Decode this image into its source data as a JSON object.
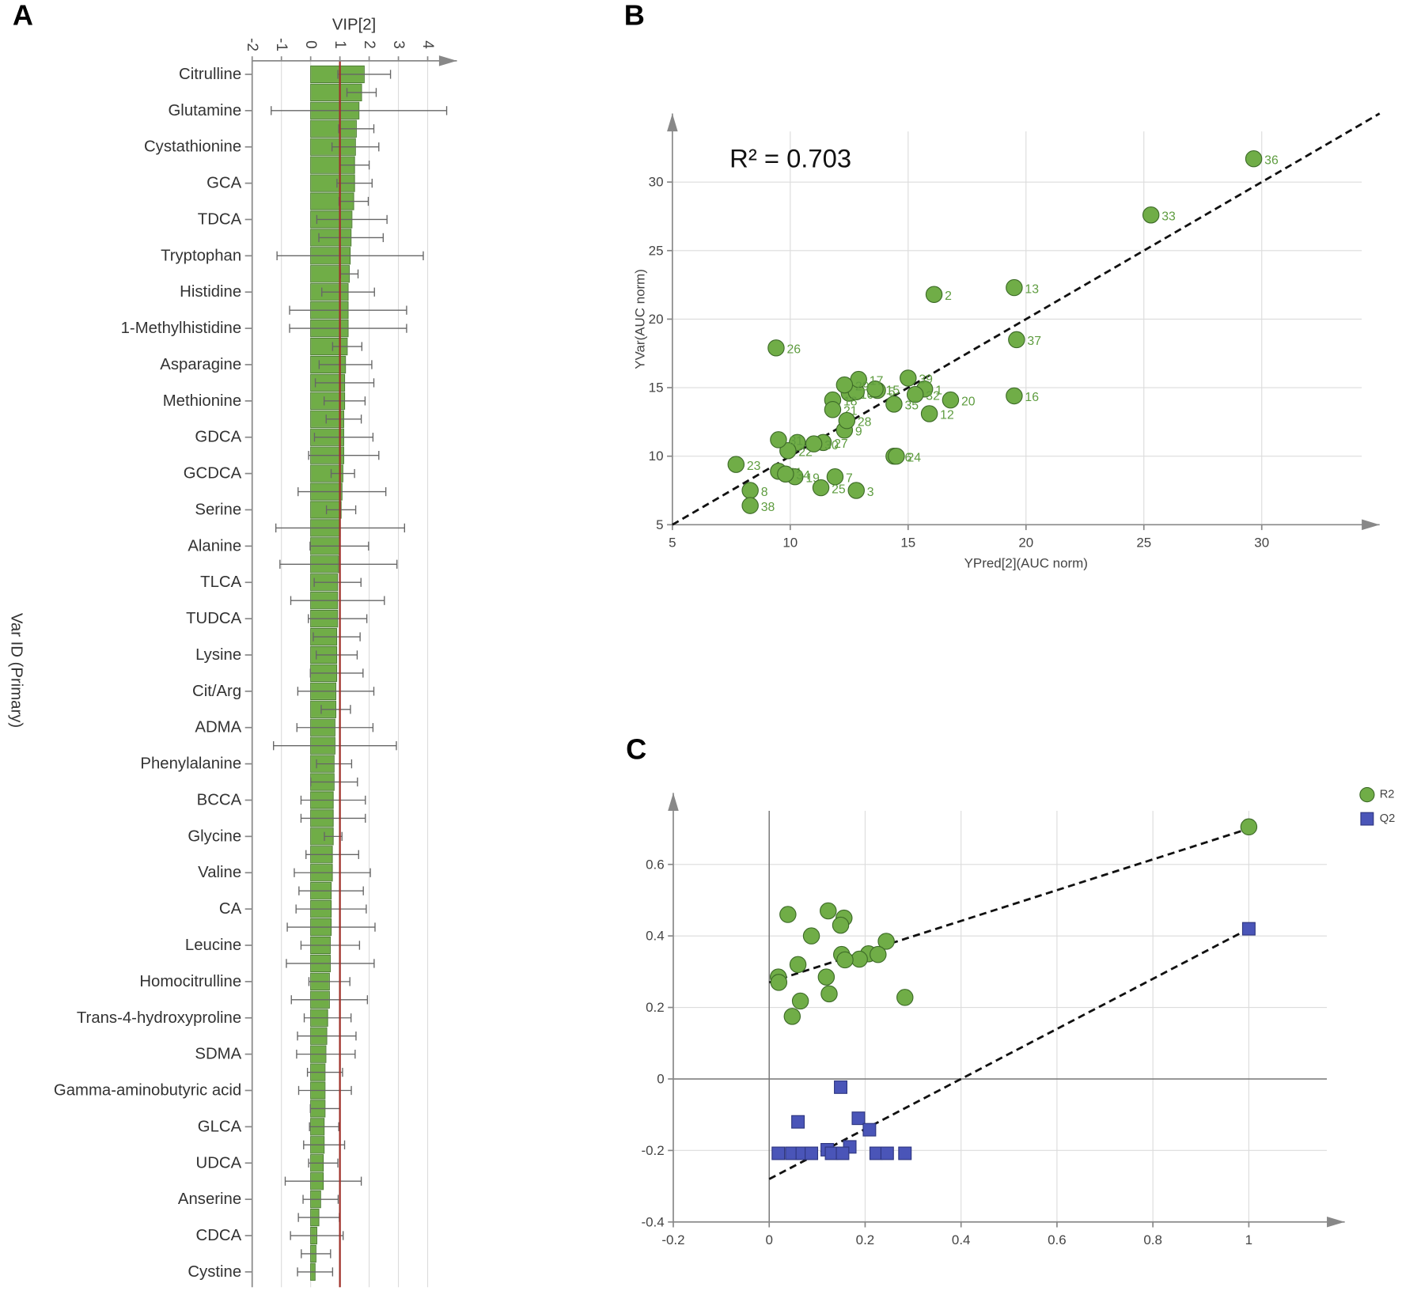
{
  "chart_data": [
    {
      "panel": "A",
      "type": "hbar",
      "xlabel": "VIP[2]",
      "ylabel": "Var ID (Primary)",
      "categories": [
        "Citrulline",
        null,
        "Glutamine",
        null,
        "Cystathionine",
        null,
        "GCA",
        null,
        "TDCA",
        null,
        "Tryptophan",
        null,
        "Histidine",
        null,
        "1-Methylhistidine",
        null,
        "Asparagine",
        null,
        "Methionine",
        null,
        "GDCA",
        null,
        "GCDCA",
        null,
        "Serine",
        null,
        "Alanine",
        null,
        "TLCA",
        null,
        "TUDCA",
        null,
        "Lysine",
        null,
        "Cit/Arg",
        null,
        "ADMA",
        null,
        "Phenylalanine",
        null,
        "BCCA",
        null,
        "Glycine",
        null,
        "Valine",
        null,
        "CA",
        null,
        "Leucine",
        null,
        "Homocitrulline",
        null,
        "Trans-4-hydroxyproline",
        null,
        "SDMA",
        null,
        "Gamma-aminobutyric acid",
        null,
        "GLCA",
        null,
        "UDCA",
        null,
        "Anserine",
        null,
        "CDCA",
        null,
        "Cystine"
      ],
      "values": [
        1.83,
        1.74,
        1.65,
        1.56,
        1.53,
        1.5,
        1.5,
        1.47,
        1.41,
        1.38,
        1.35,
        1.32,
        1.28,
        1.28,
        1.28,
        1.25,
        1.19,
        1.16,
        1.16,
        1.13,
        1.13,
        1.13,
        1.1,
        1.07,
        1.04,
        1.01,
        0.98,
        0.95,
        0.92,
        0.92,
        0.92,
        0.89,
        0.89,
        0.89,
        0.86,
        0.86,
        0.83,
        0.83,
        0.8,
        0.8,
        0.77,
        0.77,
        0.77,
        0.74,
        0.74,
        0.7,
        0.7,
        0.7,
        0.67,
        0.67,
        0.64,
        0.64,
        0.58,
        0.55,
        0.52,
        0.49,
        0.49,
        0.49,
        0.46,
        0.46,
        0.43,
        0.43,
        0.34,
        0.28,
        0.21,
        0.18,
        0.15
      ],
      "errors": [
        0.9,
        0.5,
        3.0,
        0.6,
        0.8,
        0.5,
        0.6,
        0.5,
        1.2,
        1.1,
        2.5,
        0.3,
        0.9,
        2.0,
        2.0,
        0.5,
        0.9,
        1.0,
        0.7,
        0.6,
        1.0,
        1.2,
        0.4,
        1.5,
        0.5,
        2.2,
        1.0,
        2.0,
        0.8,
        1.6,
        1.0,
        0.8,
        0.7,
        0.9,
        1.3,
        0.5,
        1.3,
        2.1,
        0.6,
        0.8,
        1.1,
        1.1,
        0.3,
        0.9,
        1.3,
        1.1,
        1.2,
        1.5,
        1.0,
        1.5,
        0.7,
        1.3,
        0.8,
        1.0,
        1.0,
        0.6,
        0.9,
        0.5,
        0.5,
        0.7,
        0.5,
        1.3,
        0.6,
        0.7,
        0.9,
        0.5,
        0.6
      ],
      "color": "#70ad47",
      "error_color": "#666666",
      "reference_line": 1,
      "reference_color": "#a0302a",
      "xlim": [
        -2,
        5
      ],
      "xticks": [
        -2,
        -1,
        0,
        1,
        2,
        3,
        4
      ],
      "grid": true
    },
    {
      "panel": "B",
      "type": "scatter",
      "xlabel": "YPred[2](AUC norm)",
      "ylabel": "YVar(AUC norm)",
      "annotation": "R² = 0.703",
      "labels": [
        "1",
        "2",
        "3",
        "4",
        "5",
        "6",
        "7",
        "8",
        "9",
        "10",
        "11",
        "12",
        "13",
        "14",
        "15",
        "16",
        "17",
        "18",
        "19",
        "20",
        "21",
        "22",
        "23",
        "24",
        "25",
        "26",
        "27",
        "28",
        "29",
        "30",
        "31",
        "32",
        "33",
        "34",
        "35",
        "36",
        "37",
        "38",
        "39"
      ],
      "x": [
        15.7,
        16.1,
        12.8,
        10.3,
        13.7,
        14.4,
        11.9,
        8.3,
        12.3,
        12.5,
        9.5,
        15.9,
        19.5,
        12.8,
        13.6,
        19.5,
        12.9,
        11.8,
        10.2,
        16.8,
        11.8,
        9.9,
        7.7,
        14.5,
        11.3,
        9.4,
        11.4,
        12.4,
        12.3,
        11.0,
        9.5,
        15.3,
        25.3,
        9.8,
        14.4,
        29.66,
        19.6,
        8.3,
        15.0
      ],
      "y": [
        14.9,
        21.8,
        7.5,
        11.0,
        14.8,
        10.0,
        8.5,
        7.5,
        11.9,
        14.6,
        8.9,
        13.1,
        22.3,
        14.7,
        14.9,
        14.4,
        15.6,
        14.1,
        8.5,
        14.1,
        13.4,
        10.4,
        9.4,
        10.0,
        7.7,
        17.9,
        11.0,
        12.6,
        15.2,
        10.9,
        11.2,
        14.5,
        27.6,
        8.7,
        13.8,
        31.7,
        18.5,
        6.4,
        15.7
      ],
      "color": "#70ad47",
      "fit_line": {
        "x": [
          5,
          35
        ],
        "y": [
          5,
          35
        ]
      },
      "xlim": [
        5,
        35
      ],
      "ylim": [
        5,
        35
      ],
      "xticks": [
        5,
        10,
        15,
        20,
        25,
        30
      ],
      "yticks": [
        5,
        10,
        15,
        20,
        25,
        30
      ],
      "grid": true
    },
    {
      "panel": "C",
      "type": "scatter",
      "legend": "top-right",
      "series": [
        {
          "name": "R2",
          "color": "#70ad47",
          "marker": "circle",
          "x": [
            1.0,
            0.039,
            0.123,
            0.156,
            0.149,
            0.088,
            0.244,
            0.207,
            0.227,
            0.151,
            0.188,
            0.158,
            0.019,
            0.06,
            0.119,
            0.02,
            0.125,
            0.065,
            0.283,
            0.048
          ],
          "y": [
            0.705,
            0.46,
            0.47,
            0.45,
            0.43,
            0.4,
            0.385,
            0.35,
            0.348,
            0.348,
            0.335,
            0.333,
            0.285,
            0.32,
            0.285,
            0.27,
            0.238,
            0.218,
            0.228,
            0.175
          ]
        },
        {
          "name": "Q2",
          "color": "#4a55b8",
          "marker": "square",
          "x": [
            1.0,
            0.149,
            0.06,
            0.186,
            0.209,
            0.168,
            0.121,
            0.019,
            0.047,
            0.069,
            0.088,
            0.13,
            0.153,
            0.223,
            0.246,
            0.283
          ],
          "y": [
            0.42,
            -0.023,
            -0.12,
            -0.11,
            -0.142,
            -0.19,
            -0.198,
            -0.208,
            -0.208,
            -0.208,
            -0.208,
            -0.208,
            -0.208,
            -0.208,
            -0.208,
            -0.208
          ]
        }
      ],
      "fit_lines": [
        {
          "x": [
            0,
            1
          ],
          "y": [
            0.27,
            0.7
          ]
        },
        {
          "x": [
            0,
            1
          ],
          "y": [
            -0.28,
            0.42
          ]
        }
      ],
      "xlim": [
        -0.2,
        1.2
      ],
      "ylim": [
        -0.4,
        0.8
      ],
      "xticks": [
        -0.2,
        0,
        0.2,
        0.4,
        0.6,
        0.8,
        1
      ],
      "yticks": [
        -0.4,
        -0.2,
        0,
        0.2,
        0.4,
        0.6
      ],
      "grid": true
    }
  ]
}
